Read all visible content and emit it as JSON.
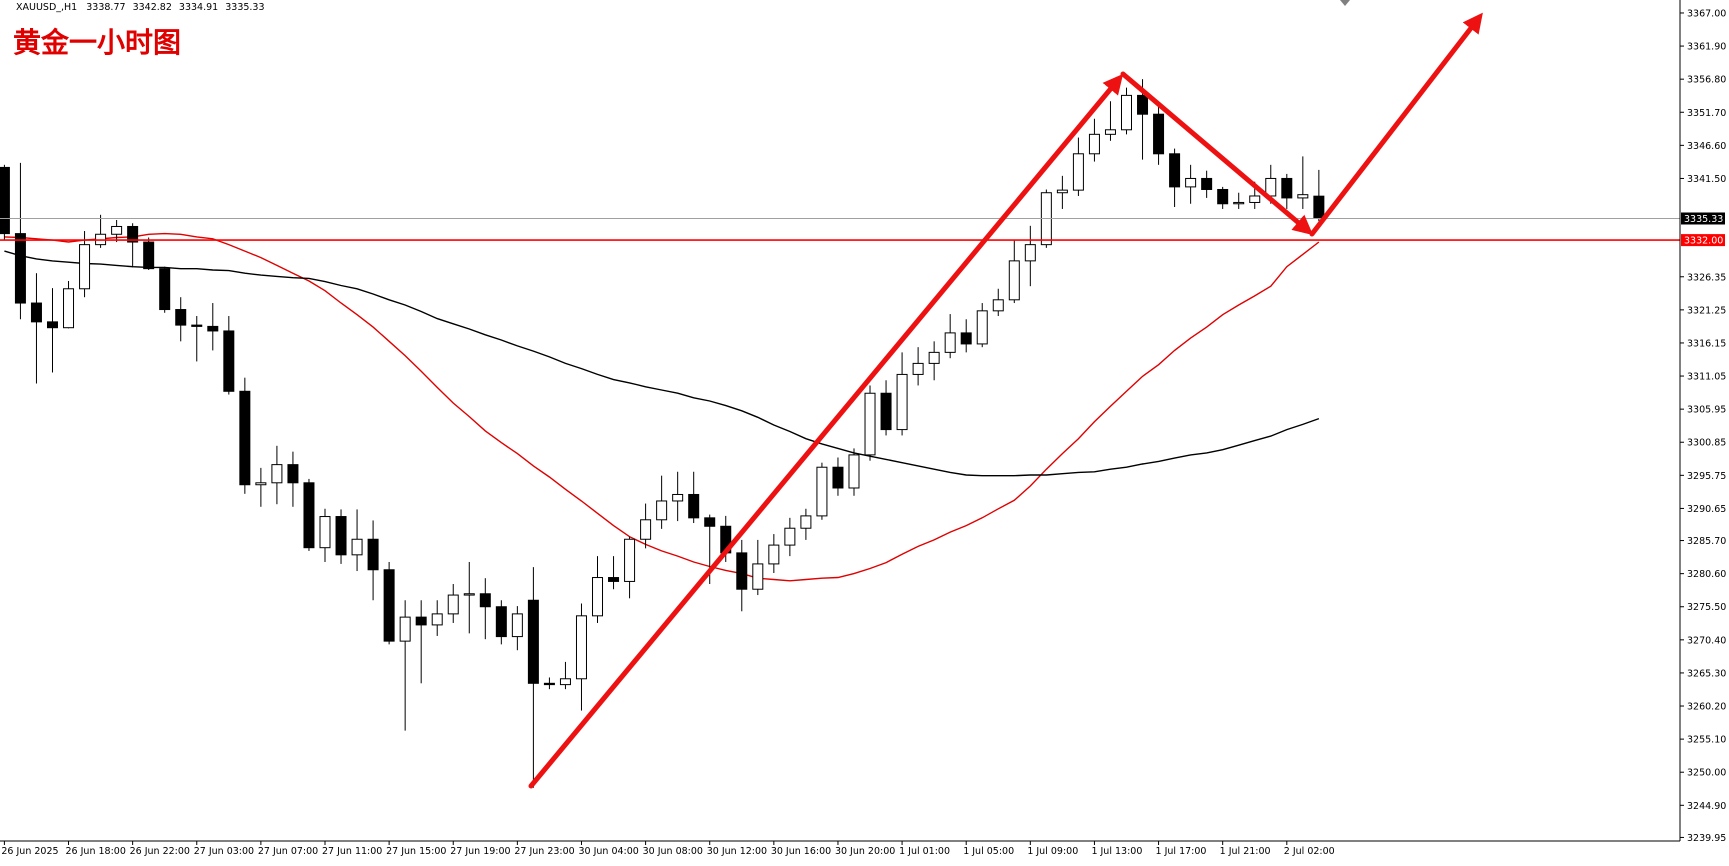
{
  "chart_data": {
    "type": "candlestick",
    "symbol": "XAUUSD_,H1",
    "annotation": "黄金一小时图",
    "categories": [
      "26 Jun 2025",
      null,
      null,
      null,
      "26 Jun 18:00",
      null,
      null,
      null,
      "26 Jun 22:00",
      null,
      null,
      null,
      "27 Jun 03:00",
      null,
      null,
      null,
      "27 Jun 07:00",
      null,
      null,
      null,
      "27 Jun 11:00",
      null,
      null,
      null,
      "27 Jun 15:00",
      null,
      null,
      null,
      "27 Jun 19:00",
      null,
      null,
      null,
      "27 Jun 23:00",
      null,
      null,
      null,
      "30 Jun 04:00",
      null,
      null,
      null,
      "30 Jun 08:00",
      null,
      null,
      null,
      "30 Jun 12:00",
      null,
      null,
      null,
      "30 Jun 16:00",
      null,
      null,
      null,
      "30 Jun 20:00",
      null,
      null,
      null,
      "1 Jul 01:00",
      null,
      null,
      null,
      "1 Jul 05:00",
      null,
      null,
      null,
      "1 Jul 09:00",
      null,
      null,
      null,
      "1 Jul 13:00",
      null,
      null,
      null,
      "1 Jul 17:00",
      null,
      null,
      null,
      "1 Jul 21:00",
      null,
      null,
      null,
      "2 Jul 02:00",
      null,
      null
    ],
    "open": [
      3343.2,
      3333.0,
      3322.3,
      3319.4,
      3318.5,
      3324.5,
      3331.3,
      3332.9,
      3334.1,
      3331.7,
      3327.6,
      3321.3,
      3318.9,
      3318.7,
      3318.0,
      3308.7,
      3294.3,
      3294.6,
      3297.4,
      3294.6,
      3284.6,
      3289.4,
      3283.5,
      3285.9,
      3281.2,
      3270.2,
      3273.9,
      3272.7,
      3274.4,
      3277.3,
      3277.5,
      3275.5,
      3270.9,
      3276.5,
      3263.7,
      3263.5,
      3264.4,
      3274.1,
      3280.0,
      3279.4,
      3285.9,
      3288.9,
      3291.8,
      3292.8,
      3289.2,
      3287.9,
      3283.8,
      3278.2,
      3282.1,
      3285.0,
      3287.6,
      3289.5,
      3297.0,
      3293.8,
      3298.9,
      3308.4,
      3302.8,
      3311.3,
      3313.0,
      3314.7,
      3317.7,
      3316.0,
      3321.1,
      3322.8,
      3328.8,
      3331.3,
      3339.3,
      3339.7,
      3345.3,
      3348.3,
      3349.0,
      3354.3,
      3351.4,
      3345.3,
      3340.2,
      3341.5,
      3339.8,
      3337.6,
      3337.8,
      3338.8,
      3341.5,
      3338.5,
      3338.77
    ],
    "high": [
      3343.6,
      3343.9,
      3326.9,
      3324.6,
      3325.7,
      3333.4,
      3335.9,
      3335.1,
      3334.6,
      3332.4,
      3327.9,
      3323.2,
      3320.3,
      3322.3,
      3320.3,
      3310.8,
      3296.9,
      3300.3,
      3299.4,
      3295.2,
      3290.6,
      3290.5,
      3290.5,
      3288.8,
      3282.4,
      3276.5,
      3276.5,
      3276.5,
      3279.0,
      3282.4,
      3279.9,
      3276.5,
      3275.6,
      3281.6,
      3264.6,
      3267.0,
      3276.0,
      3283.3,
      3283.3,
      3286.3,
      3291.4,
      3295.7,
      3296.3,
      3296.3,
      3289.7,
      3289.5,
      3285.8,
      3285.8,
      3286.7,
      3289.2,
      3290.6,
      3297.7,
      3298.5,
      3299.9,
      3309.6,
      3310.4,
      3314.7,
      3315.5,
      3316.4,
      3320.6,
      3319.8,
      3322.3,
      3324.5,
      3332.0,
      3334.2,
      3339.8,
      3341.9,
      3347.8,
      3350.7,
      3353.4,
      3355.5,
      3356.8,
      3352.9,
      3346.1,
      3343.6,
      3342.7,
      3340.2,
      3339.3,
      3341.0,
      3343.6,
      3342.2,
      3344.9,
      3342.82
    ],
    "low": [
      3332.0,
      3319.8,
      3309.9,
      3311.6,
      3318.4,
      3323.2,
      3330.8,
      3331.7,
      3327.8,
      3327.4,
      3320.8,
      3316.4,
      3313.3,
      3315.0,
      3308.2,
      3292.9,
      3290.9,
      3291.3,
      3290.9,
      3284.1,
      3282.4,
      3282.1,
      3281.0,
      3276.5,
      3269.7,
      3256.4,
      3263.7,
      3271.0,
      3273.0,
      3271.4,
      3270.5,
      3269.7,
      3268.8,
      3247.6,
      3262.8,
      3262.8,
      3259.5,
      3273.0,
      3278.2,
      3276.8,
      3284.5,
      3287.5,
      3288.7,
      3288.4,
      3279.0,
      3282.4,
      3274.8,
      3277.3,
      3280.7,
      3283.3,
      3285.8,
      3288.9,
      3292.6,
      3292.6,
      3298.0,
      3301.9,
      3301.9,
      3309.6,
      3310.4,
      3313.8,
      3314.7,
      3315.5,
      3320.3,
      3322.3,
      3324.9,
      3330.8,
      3336.8,
      3338.8,
      3344.1,
      3347.3,
      3348.3,
      3344.4,
      3343.6,
      3337.1,
      3337.6,
      3338.5,
      3336.8,
      3336.8,
      3336.8,
      3337.6,
      3336.8,
      3336.8,
      3334.91
    ],
    "close": [
      3333.0,
      3322.3,
      3319.4,
      3318.5,
      3324.5,
      3331.3,
      3332.9,
      3334.1,
      3331.7,
      3327.6,
      3321.3,
      3318.9,
      3318.7,
      3318.0,
      3308.7,
      3294.3,
      3294.6,
      3297.4,
      3294.6,
      3284.6,
      3289.4,
      3283.5,
      3285.9,
      3281.2,
      3270.2,
      3273.9,
      3272.7,
      3274.4,
      3277.3,
      3277.5,
      3275.5,
      3270.9,
      3274.4,
      3263.7,
      3263.5,
      3264.4,
      3274.1,
      3280.0,
      3279.4,
      3285.9,
      3288.9,
      3291.8,
      3292.8,
      3289.2,
      3287.9,
      3283.8,
      3278.2,
      3282.1,
      3285.0,
      3287.6,
      3289.5,
      3297.0,
      3293.8,
      3298.9,
      3308.4,
      3302.8,
      3311.3,
      3313.0,
      3314.7,
      3317.7,
      3316.0,
      3321.1,
      3322.8,
      3328.8,
      3331.3,
      3339.3,
      3339.7,
      3345.3,
      3348.3,
      3349.0,
      3354.3,
      3351.4,
      3345.3,
      3340.2,
      3341.5,
      3339.8,
      3337.6,
      3337.8,
      3338.8,
      3341.5,
      3338.5,
      3339.0,
      3335.33
    ],
    "up_color": "#ffffff",
    "down_color": "#000000",
    "lines": [
      {
        "color": "#e00000",
        "values": [
          3332.5,
          3332.4,
          3332.2,
          3332.0,
          3331.7,
          3332.0,
          3332.2,
          3332.4,
          3332.5,
          3332.9,
          3333.0,
          3332.9,
          3332.5,
          3332.2,
          3331.3,
          3330.3,
          3329.3,
          3328.1,
          3326.9,
          3325.7,
          3324.2,
          3322.3,
          3320.5,
          3318.6,
          3316.4,
          3314.2,
          3311.8,
          3309.3,
          3306.9,
          3304.8,
          3302.6,
          3300.8,
          3299.1,
          3297.2,
          3295.5,
          3293.6,
          3291.8,
          3289.9,
          3288.0,
          3286.3,
          3285.1,
          3284.1,
          3283.3,
          3282.4,
          3281.7,
          3281.1,
          3280.6,
          3279.9,
          3279.7,
          3279.5,
          3279.7,
          3279.9,
          3280.0,
          3280.6,
          3281.4,
          3282.3,
          3283.6,
          3284.8,
          3285.8,
          3287.0,
          3288.0,
          3289.2,
          3290.6,
          3291.9,
          3294.1,
          3296.7,
          3299.1,
          3301.4,
          3304.0,
          3306.4,
          3308.7,
          3311.0,
          3312.8,
          3315.0,
          3316.9,
          3318.6,
          3320.5,
          3322.0,
          3323.4,
          3324.9,
          3327.9,
          3329.8,
          3331.7
        ]
      },
      {
        "color": "#000000",
        "values": [
          3330.3,
          3329.6,
          3329.1,
          3328.8,
          3328.6,
          3328.4,
          3328.3,
          3328.1,
          3327.9,
          3327.8,
          3327.8,
          3327.6,
          3327.6,
          3327.4,
          3327.3,
          3326.9,
          3326.6,
          3326.4,
          3326.2,
          3326.1,
          3325.6,
          3325.0,
          3324.5,
          3323.7,
          3322.8,
          3322.0,
          3321.0,
          3319.9,
          3319.1,
          3318.3,
          3317.4,
          3316.6,
          3315.7,
          3314.9,
          3314.0,
          3313.0,
          3312.2,
          3311.3,
          3310.5,
          3310.0,
          3309.4,
          3308.9,
          3308.4,
          3307.7,
          3307.2,
          3306.5,
          3305.7,
          3304.7,
          3303.5,
          3302.5,
          3301.4,
          3300.6,
          3299.9,
          3299.2,
          3298.7,
          3298.2,
          3297.7,
          3297.2,
          3296.7,
          3296.2,
          3295.8,
          3295.7,
          3295.7,
          3295.7,
          3295.8,
          3295.8,
          3296.0,
          3296.2,
          3296.3,
          3296.7,
          3297.0,
          3297.5,
          3297.9,
          3298.4,
          3298.9,
          3299.2,
          3299.7,
          3300.4,
          3301.1,
          3301.8,
          3302.8,
          3303.6,
          3304.5
        ]
      }
    ],
    "price_lines": [
      {
        "value": 3335.33,
        "color": "#a0a0a0",
        "box": "#000000"
      },
      {
        "value": 3332,
        "label": "3332.00",
        "color": "#ff0000",
        "box": "#ff0000"
      }
    ],
    "ylim": [
      3239.4,
      3369.0
    ],
    "yticks": [
      {
        "value": 3367,
        "label": "3367.00"
      },
      {
        "value": 3361.9,
        "label": "3361.90"
      },
      {
        "value": 3356.8,
        "label": "3356.80"
      },
      {
        "value": 3351.7,
        "label": "3351.70"
      },
      {
        "value": 3346.6,
        "label": "3346.60"
      },
      {
        "value": 3341.5,
        "label": "3341.50"
      },
      {
        "value": 3326.35,
        "label": "3326.35"
      },
      {
        "value": 3321.25,
        "label": "3321.25"
      },
      {
        "value": 3316.15,
        "label": "3316.15"
      },
      {
        "value": 3311.05,
        "label": "3311.05"
      },
      {
        "value": 3305.95,
        "label": "3305.95"
      },
      {
        "value": 3300.85,
        "label": "3300.85"
      },
      {
        "value": 3295.75,
        "label": "3295.75"
      },
      {
        "value": 3290.65,
        "label": "3290.65"
      },
      {
        "value": 3285.7,
        "label": "3285.70"
      },
      {
        "value": 3280.6,
        "label": "3280.60"
      },
      {
        "value": 3275.5,
        "label": "3275.50"
      },
      {
        "value": 3270.4,
        "label": "3270.40"
      },
      {
        "value": 3265.3,
        "label": "3265.30"
      },
      {
        "value": 3260.2,
        "label": "3260.20"
      },
      {
        "value": 3255.1,
        "label": "3255.10"
      },
      {
        "value": 3250,
        "label": "3250.00"
      },
      {
        "value": 3244.9,
        "label": "3244.90"
      },
      {
        "value": 3239.95,
        "label": "3239.95"
      }
    ]
  }
}
